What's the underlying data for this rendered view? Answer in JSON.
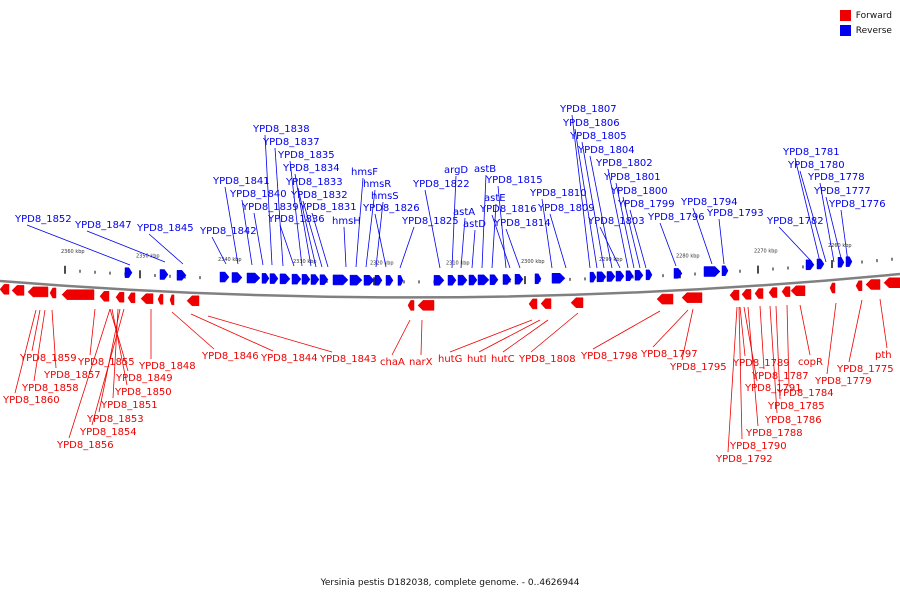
{
  "legend": {
    "forward": {
      "label": "Forward",
      "color": "#ee0000"
    },
    "reverse": {
      "label": "Reverse",
      "color": "#0000ee"
    }
  },
  "caption": "Yersinia pestis D182038, complete genome. - 0..4626944",
  "ticks": [
    "2360 kbp",
    "2350 kbp",
    "2340 kbp",
    "2330 kbp",
    "2320 kbp",
    "2310 kbp",
    "2300 kbp",
    "2290 kbp",
    "2280 kbp",
    "2270 kbp",
    "2260 kbp"
  ],
  "reverse_labels": [
    "YPD8_1852",
    "YPD8_1847",
    "YPD8_1845",
    "YPD8_1842",
    "YPD8_1841",
    "YPD8_1840",
    "YPD8_1839",
    "YPD8_1838",
    "YPD8_1837",
    "YPD8_1836",
    "YPD8_1835",
    "YPD8_1834",
    "YPD8_1833",
    "YPD8_1832",
    "YPD8_1831",
    "hmsH",
    "hmsF",
    "hmsR",
    "hmsS",
    "YPD8_1826",
    "YPD8_1825",
    "YPD8_1822",
    "argD",
    "astA",
    "astD",
    "astB",
    "astE",
    "YPD8_1815",
    "YPD8_1816",
    "YPD8_1814",
    "YPD8_1810",
    "YPD8_1809",
    "YPD8_1807",
    "YPD8_1806",
    "YPD8_1805",
    "YPD8_1804",
    "YPD8_1803",
    "YPD8_1802",
    "YPD8_1801",
    "YPD8_1800",
    "YPD8_1799",
    "YPD8_1796",
    "YPD8_1794",
    "YPD8_1793",
    "YPD8_1782",
    "YPD8_1781",
    "YPD8_1780",
    "YPD8_1778",
    "YPD8_1777",
    "YPD8_1776"
  ],
  "forward_labels": [
    "YPD8_1859",
    "YPD8_1857",
    "YPD8_1858",
    "YPD8_1860",
    "YPD8_1855",
    "YPD8_1849",
    "YPD8_1850",
    "YPD8_1851",
    "YPD8_1853",
    "YPD8_1854",
    "YPD8_1856",
    "YPD8_1848",
    "YPD8_1846",
    "YPD8_1844",
    "YPD8_1843",
    "chaA",
    "narX",
    "hutG",
    "hutI",
    "hutC",
    "YPD8_1808",
    "YPD8_1798",
    "YPD8_1797",
    "YPD8_1795",
    "YPD8_1789",
    "YPD8_1791",
    "YPD8_1790",
    "YPD8_1792",
    "YPD8_1788",
    "YPD8_1787",
    "YPD8_1785",
    "YPD8_1786",
    "YPD8_1784",
    "copR",
    "YPD8_1779",
    "YPD8_1775",
    "pth"
  ]
}
